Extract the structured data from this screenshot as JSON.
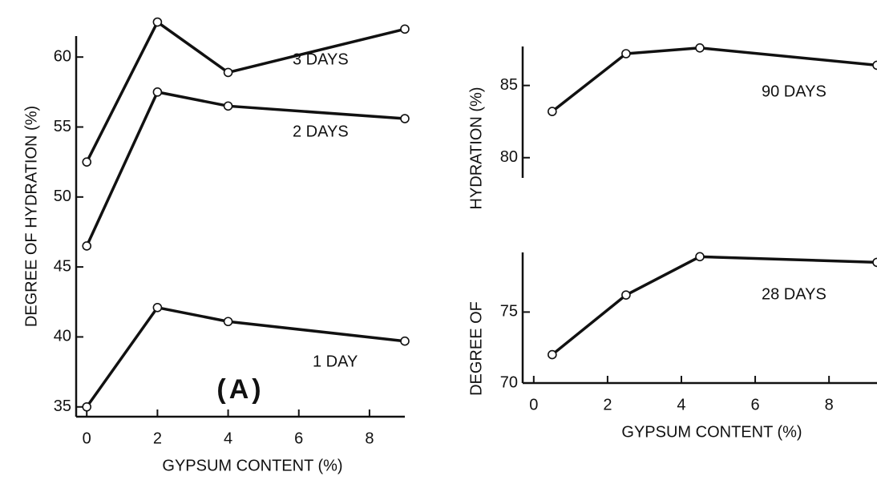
{
  "chart_data": [
    {
      "type": "line",
      "ylabel": "DEGREE OF  HYDRATION (%)",
      "xlabel": "GYPSUM  CONTENT (%)",
      "annotation": "(A)",
      "xlim": [
        -0.3,
        9.0
      ],
      "ylim": [
        34.3,
        61.5
      ],
      "xticks": [
        0,
        2,
        4,
        6,
        8
      ],
      "yticks": [
        35,
        40,
        45,
        50,
        55,
        60
      ],
      "x": [
        0,
        2,
        4,
        9
      ],
      "series": [
        {
          "name": "3 DAYS",
          "color": "#111111",
          "values": [
            52.5,
            62.5,
            58.9,
            62.0
          ]
        },
        {
          "name": "2 DAYS",
          "color": "#111111",
          "values": [
            46.5,
            57.5,
            56.5,
            55.6
          ]
        },
        {
          "name": "1 DAY",
          "color": "#111111",
          "values": [
            35.0,
            42.1,
            41.1,
            39.7
          ]
        }
      ]
    },
    {
      "type": "line",
      "ylabel": "HYDRATION (%)",
      "xlim": [
        -0.3,
        9.3
      ],
      "ylim": [
        78.6,
        87.7
      ],
      "yticks": [
        80,
        85
      ],
      "x": [
        0.5,
        2.5,
        4.5,
        9.3
      ],
      "series": [
        {
          "name": "90 DAYS",
          "color": "#111111",
          "values": [
            83.2,
            87.2,
            87.6,
            86.4
          ]
        }
      ]
    },
    {
      "type": "line",
      "ylabel": "DEGREE OF",
      "xlabel": "GYPSUM  CONTENT (%)",
      "xlim": [
        -0.3,
        9.3
      ],
      "ylim": [
        70,
        79.2
      ],
      "xticks": [
        0,
        2,
        4,
        6,
        8
      ],
      "yticks": [
        70,
        75
      ],
      "x": [
        0.5,
        2.5,
        4.5,
        9.3
      ],
      "series": [
        {
          "name": "28 DAYS",
          "color": "#111111",
          "values": [
            72.0,
            76.2,
            78.9,
            78.5
          ]
        }
      ]
    }
  ]
}
